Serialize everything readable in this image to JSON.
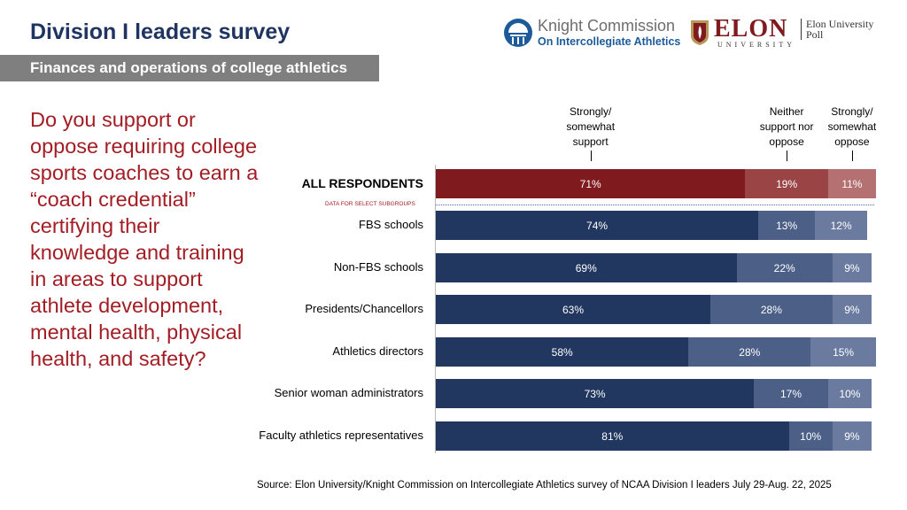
{
  "header": {
    "title": "Division I leaders survey",
    "subtitle": "Finances and operations of college athletics"
  },
  "logos": {
    "knight_line1": "Knight Commission",
    "knight_line2": "On Intercollegiate Athletics",
    "elon": "ELON",
    "elon_sub": "UNIVERSITY",
    "poll_line1": "Elon University",
    "poll_line2": "Poll"
  },
  "question": "Do you support or oppose requiring college sports coaches to earn a “coach credential” certifying their knowledge and training in areas to support athlete development, mental health, physical health, and safety?",
  "source": "Source: Elon University/Knight Commission on Intercollegiate Athletics survey of NCAA Division I leaders July 29-Aug. 22, 2025",
  "chart_data": {
    "type": "bar",
    "orientation": "horizontal-stacked",
    "subgroup_note": "DATA FOR SELECT SUBGROUPS",
    "legend": [
      "Strongly/ somewhat support",
      "Neither support nor oppose",
      "Strongly/ somewhat oppose"
    ],
    "categories": [
      "ALL RESPONDENTS",
      "FBS schools",
      "Non-FBS schools",
      "Presidents/Chancellors",
      "Athletics directors",
      "Senior woman administrators",
      "Faculty athletics representatives"
    ],
    "series": [
      {
        "name": "Strongly/ somewhat support",
        "values": [
          71,
          74,
          69,
          63,
          58,
          73,
          81
        ]
      },
      {
        "name": "Neither support nor oppose",
        "values": [
          19,
          13,
          22,
          28,
          28,
          17,
          10
        ]
      },
      {
        "name": "Strongly/ somewhat oppose",
        "values": [
          11,
          12,
          9,
          9,
          15,
          10,
          9
        ]
      }
    ],
    "colors": {
      "all": [
        "#7f1a1f",
        "#9a4446",
        "#b57071"
      ],
      "subgroups": [
        "#22375f",
        "#4c5f87",
        "#6b7b9f"
      ]
    },
    "xlim": [
      0,
      101
    ]
  }
}
